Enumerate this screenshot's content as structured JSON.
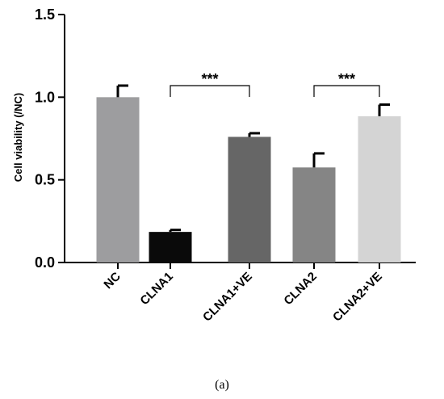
{
  "caption": "(a)",
  "chart_data": {
    "type": "bar",
    "title": "",
    "xlabel": "",
    "ylabel": "Cell viability (/NC)",
    "ylim": [
      0,
      1.5
    ],
    "yticks": [
      "0.0",
      "0.5",
      "1.0",
      "1.5"
    ],
    "categories": [
      "NC",
      "CLNA1",
      "CLNA1+VE",
      "CLNA2",
      "CLNA2+VE"
    ],
    "values": [
      1.0,
      0.185,
      0.76,
      0.575,
      0.885
    ],
    "errors": [
      0.07,
      0.012,
      0.022,
      0.085,
      0.07
    ],
    "colors": [
      "#9d9d9f",
      "#0a0a0a",
      "#666666",
      "#858585",
      "#d4d4d4"
    ],
    "grid": false,
    "significance": [
      {
        "from": 1,
        "to": 2,
        "label": "***",
        "y": 1.07
      },
      {
        "from": 3,
        "to": 4,
        "label": "***",
        "y": 1.07
      }
    ]
  }
}
